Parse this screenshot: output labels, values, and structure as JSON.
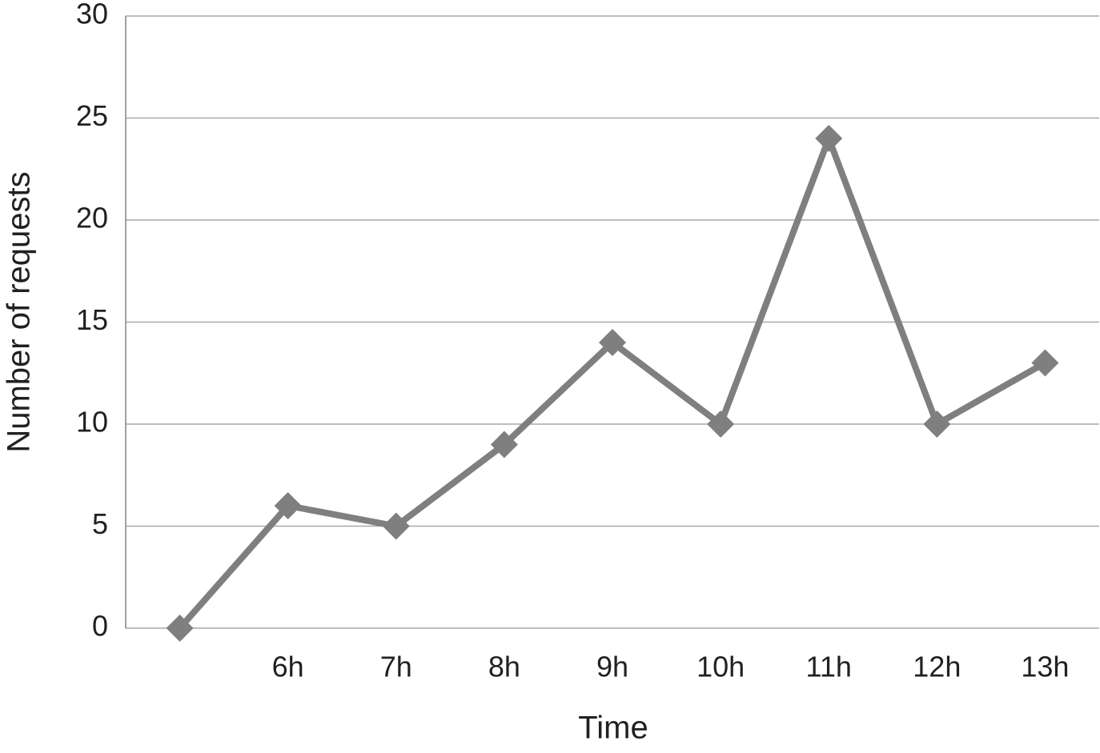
{
  "chart_data": {
    "type": "line",
    "x_label": "Time",
    "y_label": "Number of requests",
    "categories": [
      null,
      "6h",
      "7h",
      "8h",
      "9h",
      "10h",
      "11h",
      "12h",
      "13h"
    ],
    "values": [
      0,
      6,
      5,
      9,
      14,
      10,
      24,
      10,
      13
    ],
    "color": "#7f7f7f",
    "ylim": [
      0,
      30
    ],
    "yticks": [
      0,
      5,
      10,
      15,
      20,
      25,
      30
    ],
    "grid": true
  }
}
